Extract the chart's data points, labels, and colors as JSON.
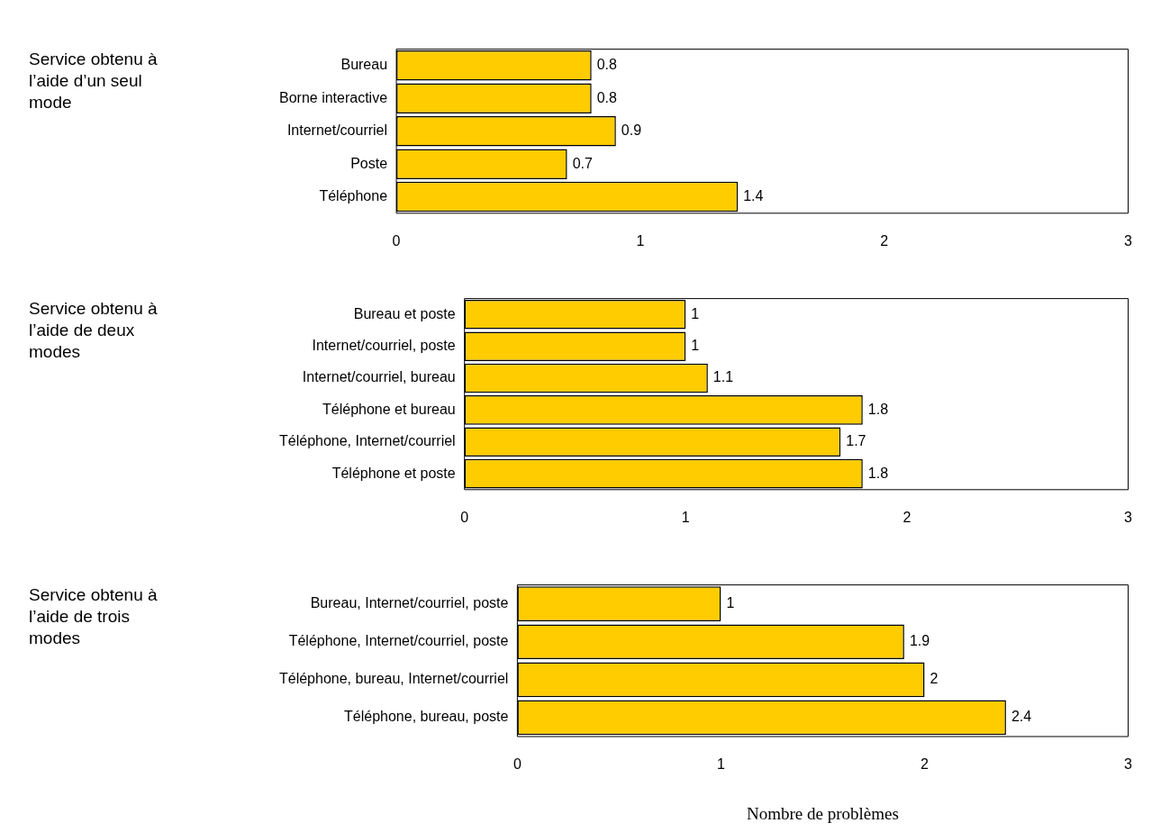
{
  "chart_data": [
    {
      "type": "bar",
      "orientation": "horizontal",
      "ylabel": "Service obtenu à l’aide d’un seul mode",
      "categories": [
        "Bureau",
        "Borne interactive",
        "Internet/courriel",
        "Poste",
        "Téléphone"
      ],
      "values": [
        0.8,
        0.8,
        0.9,
        0.7,
        1.4
      ],
      "color": "#ffcc00",
      "xlim": [
        0,
        3
      ],
      "xticks": [
        0,
        1,
        2,
        3
      ],
      "data_labels": true,
      "grid": false,
      "legend": false
    },
    {
      "type": "bar",
      "orientation": "horizontal",
      "ylabel": "Service obtenu à l’aide de deux modes",
      "categories": [
        "Bureau et poste",
        "Internet/courriel, poste",
        "Internet/courriel, bureau",
        "Téléphone et bureau",
        "Téléphone, Internet/courriel",
        "Téléphone et poste"
      ],
      "values": [
        1,
        1,
        1.1,
        1.8,
        1.7,
        1.8
      ],
      "color": "#ffcc00",
      "xlim": [
        0,
        3
      ],
      "xticks": [
        0,
        1,
        2,
        3
      ],
      "data_labels": true,
      "grid": false,
      "legend": false
    },
    {
      "type": "bar",
      "orientation": "horizontal",
      "ylabel": "Service obtenu à l’aide de trois modes",
      "xlabel": "Nombre de problèmes",
      "categories": [
        "Bureau, Internet/courriel, poste",
        "Téléphone, Internet/courriel, poste",
        "Téléphone, bureau, Internet/courriel",
        "Téléphone, bureau, poste"
      ],
      "values": [
        1,
        1.9,
        2,
        2.4
      ],
      "color": "#ffcc00",
      "xlim": [
        0,
        3
      ],
      "xticks": [
        0,
        1,
        2,
        3
      ],
      "data_labels": true,
      "grid": false,
      "legend": false
    }
  ]
}
